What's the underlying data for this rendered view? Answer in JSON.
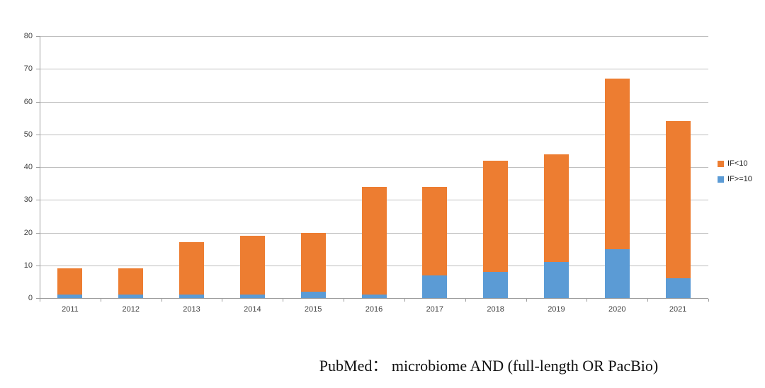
{
  "caption": "PubMed： microbiome AND (full-length OR PacBio)",
  "legend": [
    {
      "label": "IF<10",
      "color": "#ED7D31"
    },
    {
      "label": "IF>=10",
      "color": "#5B9BD5"
    }
  ],
  "colors": {
    "orange": "#ED7D31",
    "blue": "#5B9BD5",
    "gridline": "#BFBFBF",
    "axis": "#9D9D9D",
    "tick_label": "#404040",
    "background": "#FFFFFF"
  },
  "chart_data": {
    "type": "bar",
    "stacked": true,
    "title": "",
    "xlabel": "",
    "ylabel": "",
    "categories": [
      "2011",
      "2012",
      "2013",
      "2014",
      "2015",
      "2016",
      "2017",
      "2018",
      "2019",
      "2020",
      "2021"
    ],
    "series": [
      {
        "name": "IF>=10",
        "color": "#5B9BD5",
        "values": [
          1,
          1,
          1,
          1,
          2,
          1,
          7,
          8,
          11,
          15,
          6
        ]
      },
      {
        "name": "IF<10",
        "color": "#ED7D31",
        "values": [
          8,
          8,
          16,
          18,
          18,
          33,
          27,
          34,
          33,
          52,
          48
        ]
      }
    ],
    "stack_totals": [
      9,
      9,
      17,
      19,
      20,
      34,
      34,
      42,
      44,
      67,
      54
    ],
    "ylim": [
      0,
      80
    ],
    "yticks": [
      0,
      10,
      20,
      30,
      40,
      50,
      60,
      70,
      80
    ],
    "grid": true,
    "legend_position": "right"
  }
}
